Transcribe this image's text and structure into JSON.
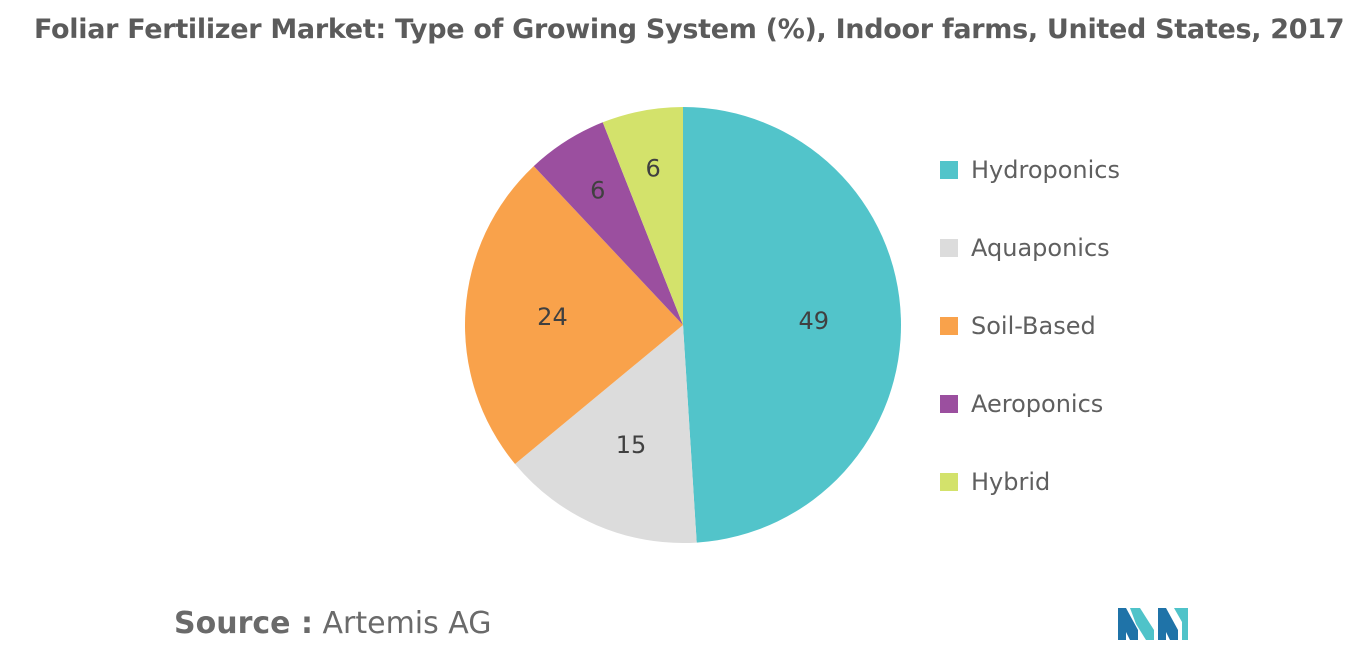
{
  "chart_data": {
    "type": "pie",
    "title": "Foliar Fertilizer Market: Type of Growing System (%), Indoor farms, United States, 2017",
    "categories": [
      "Hydroponics",
      "Aquaponics",
      "Soil-Based",
      "Aeroponics",
      "Hybrid"
    ],
    "values": [
      49,
      15,
      24,
      6,
      6
    ],
    "data_labels": [
      "49",
      "15",
      "24",
      "6",
      "6"
    ],
    "colors": [
      "#52c4ca",
      "#dcdcdc",
      "#f9a24b",
      "#9b4f9f",
      "#d3e26b"
    ],
    "legend_position": "right",
    "start_angle_deg": 0,
    "direction": "clockwise"
  },
  "source": {
    "label": "Source :",
    "value": "Artemis AG"
  },
  "logo": {
    "icon": "mordor-intelligence-logo",
    "colors": [
      "#1f73a8",
      "#4fc3c9"
    ]
  }
}
